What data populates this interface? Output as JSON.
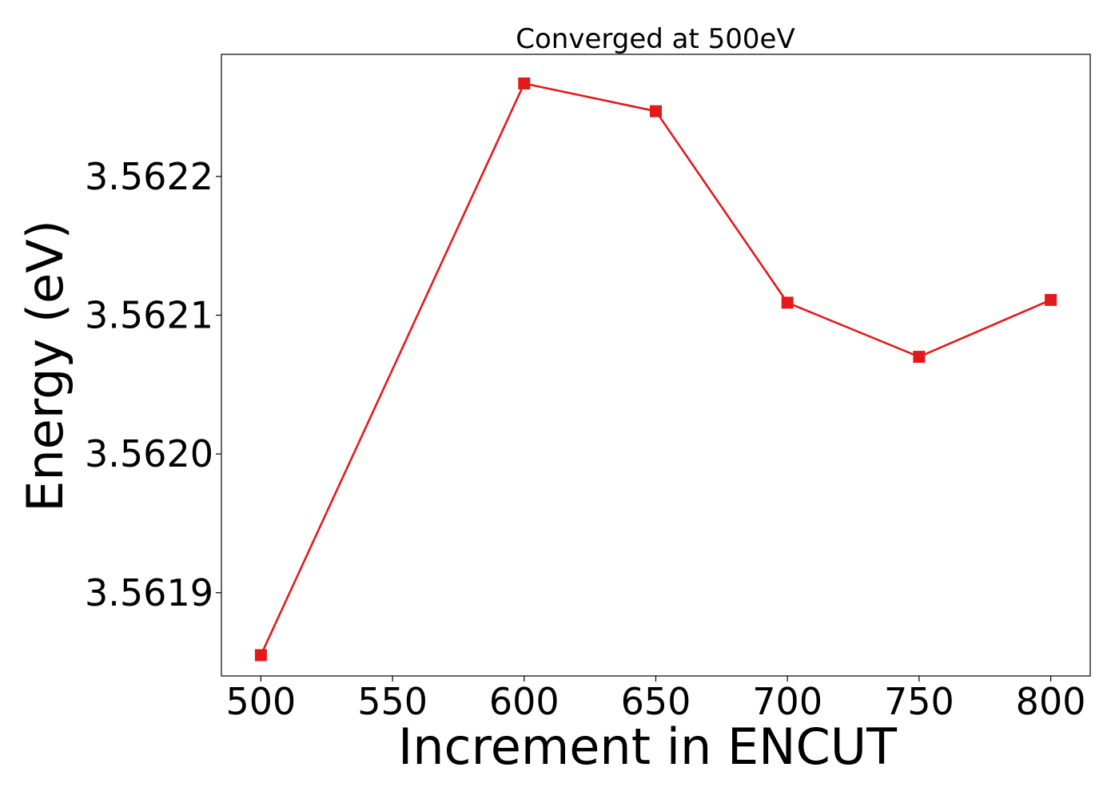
{
  "chart_data": {
    "type": "line",
    "title": "Converged at 500eV",
    "xlabel": "Increment in ENCUT",
    "ylabel": "Energy (eV)",
    "x": [
      500,
      600,
      650,
      700,
      750,
      800
    ],
    "series": [
      {
        "values": [
          3.561855,
          3.562267,
          3.562247,
          3.562109,
          3.56207,
          3.562111
        ],
        "color": "#e31a1c",
        "marker": "square"
      }
    ],
    "xlim": [
      485,
      815
    ],
    "ylim": [
      3.56184,
      3.562288
    ],
    "xticks": [
      500,
      550,
      600,
      650,
      700,
      750,
      800
    ],
    "xtick_labels": [
      "500",
      "550",
      "600",
      "650",
      "700",
      "750",
      "800"
    ],
    "yticks": [
      3.5619,
      3.562,
      3.5621,
      3.5622
    ],
    "ytick_labels": [
      "3.5619",
      "3.5620",
      "3.5621",
      "3.5622"
    ],
    "grid": false,
    "legend": "none"
  }
}
